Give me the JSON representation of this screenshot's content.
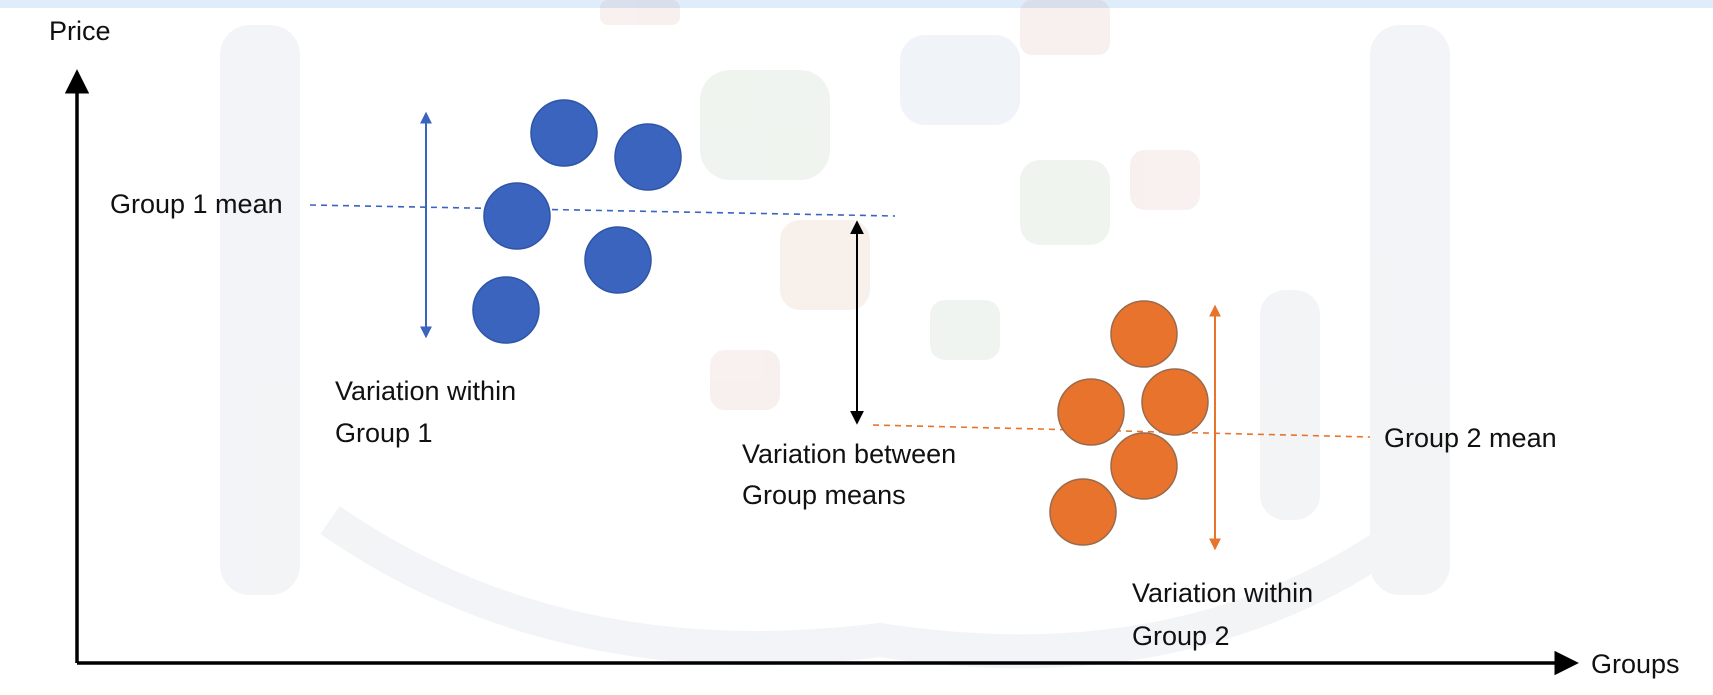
{
  "axes": {
    "y_label": "Price",
    "x_label": "Groups"
  },
  "group1": {
    "mean_label": "Group 1 mean",
    "within_label_line1": "Variation within",
    "within_label_line2": "Group 1",
    "color": "#3a64be",
    "point_count": 5
  },
  "group2": {
    "mean_label": "Group 2 mean",
    "within_label_line1": "Variation within",
    "within_label_line2": "Group 2",
    "color": "#e8732c",
    "point_count": 5
  },
  "between": {
    "label_line1": "Variation between",
    "label_line2": "Group means"
  },
  "colors": {
    "axis": "#000000",
    "title_strip": "#2a7fd4",
    "watermark": "#eef0f3"
  }
}
